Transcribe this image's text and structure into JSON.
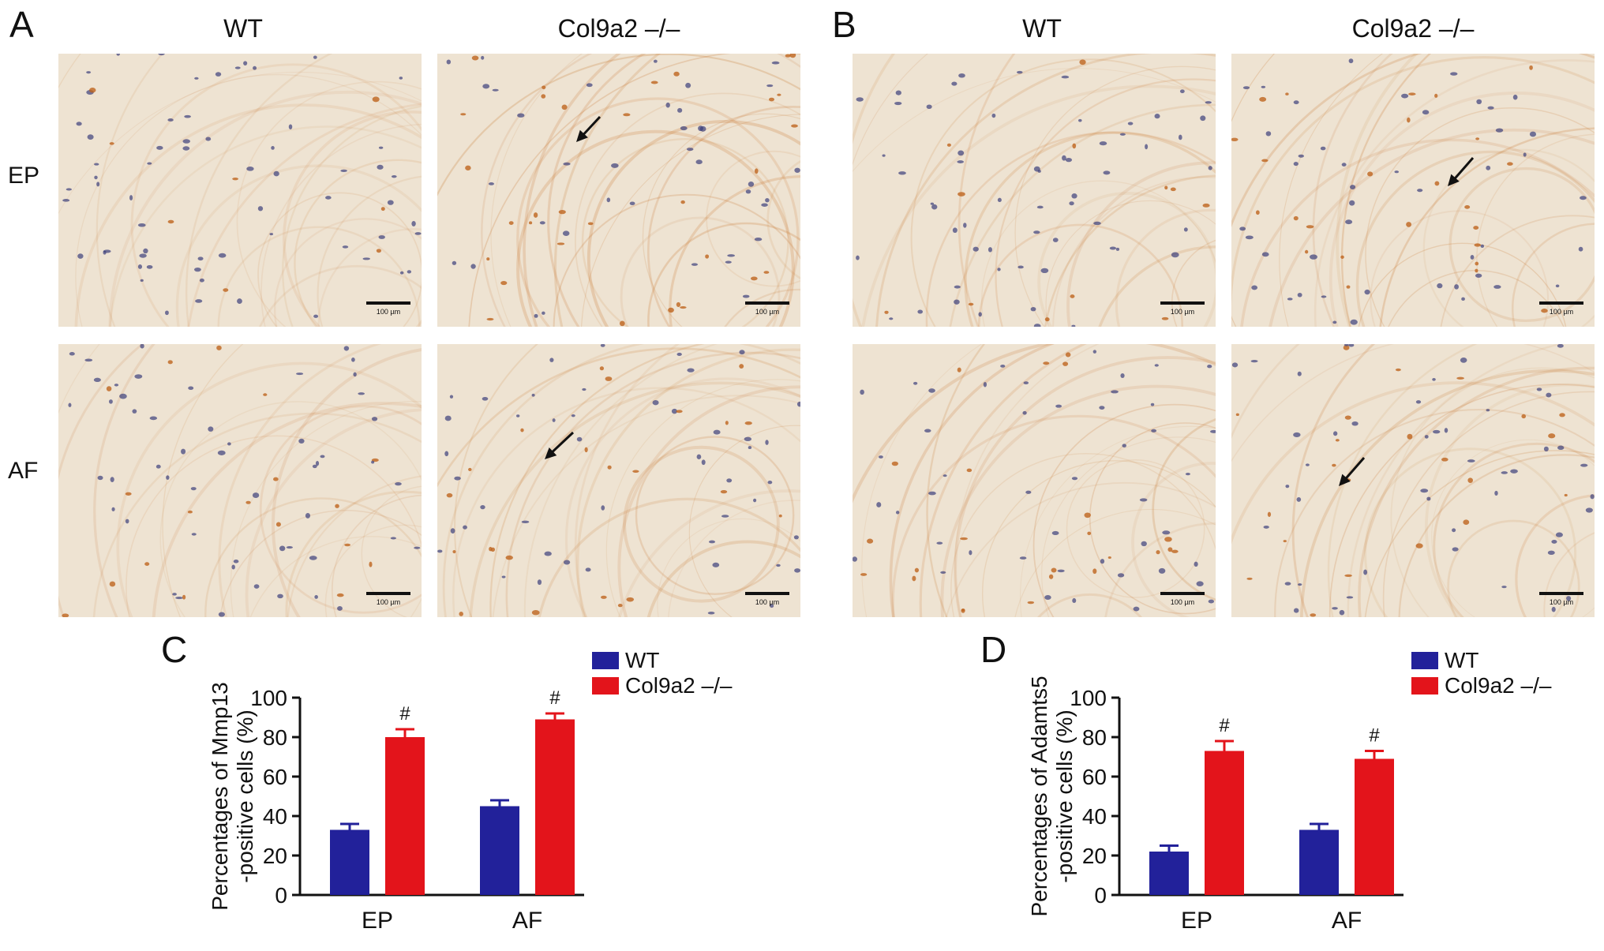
{
  "panels": {
    "A": {
      "letter": "A",
      "col_wt": "WT",
      "col_ko": "Col9a2 –/–"
    },
    "B": {
      "letter": "B",
      "col_wt": "WT",
      "col_ko": "Col9a2 –/–"
    },
    "C": {
      "letter": "C"
    },
    "D": {
      "letter": "D"
    }
  },
  "rows": {
    "ep": "EP",
    "af": "AF"
  },
  "scale_bar_label": "100 µm",
  "colors": {
    "wt": "#22219a",
    "ko": "#e3141b",
    "tissue_bg": "#efe6d6",
    "stain": "#c8782e",
    "nucleus": "#3c3f7a"
  },
  "chart_data": [
    {
      "type": "bar",
      "title": "",
      "ylabel": "Percentages of Mmp13 -positive cells (%)",
      "ylabel_lines": [
        "Percentages of Mmp13",
        "-positive cells (%)"
      ],
      "xlabel": "",
      "categories": [
        "EP",
        "AF"
      ],
      "ylim": [
        0,
        100
      ],
      "yticks": [
        0,
        20,
        40,
        60,
        80,
        100
      ],
      "legend_position": "top-right",
      "series": [
        {
          "name": "WT",
          "color": "#22219a",
          "values": [
            33,
            45
          ],
          "errors": [
            3,
            3
          ]
        },
        {
          "name": "Col9a2 –/–",
          "color": "#e3141b",
          "values": [
            80,
            89
          ],
          "errors": [
            4,
            3
          ]
        }
      ],
      "annotations": [
        "#",
        "#"
      ]
    },
    {
      "type": "bar",
      "title": "",
      "ylabel": "Percentages of Adamts5 -positive cells (%)",
      "ylabel_lines": [
        "Percentages of Adamts5",
        "-positive cells (%)"
      ],
      "xlabel": "",
      "categories": [
        "EP",
        "AF"
      ],
      "ylim": [
        0,
        100
      ],
      "yticks": [
        0,
        20,
        40,
        60,
        80,
        100
      ],
      "legend_position": "top-right",
      "series": [
        {
          "name": "WT",
          "color": "#22219a",
          "values": [
            22,
            33
          ],
          "errors": [
            3,
            3
          ]
        },
        {
          "name": "Col9a2 –/–",
          "color": "#e3141b",
          "values": [
            73,
            69
          ],
          "errors": [
            5,
            4
          ]
        }
      ],
      "annotations": [
        "#",
        "#"
      ]
    }
  ]
}
